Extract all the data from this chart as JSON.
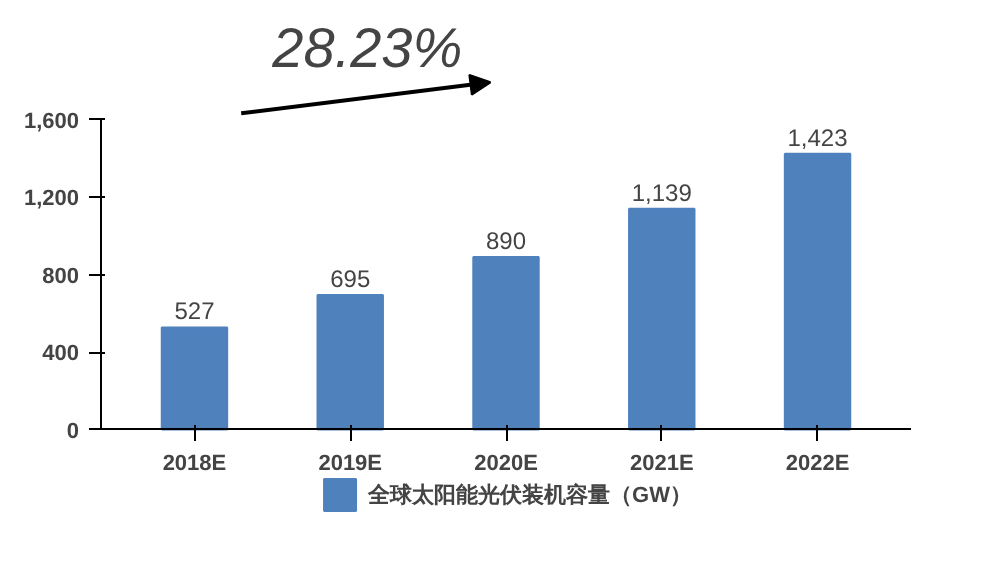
{
  "chart_data": {
    "type": "bar",
    "categories": [
      "2018E",
      "2019E",
      "2020E",
      "2021E",
      "2022E"
    ],
    "series": [
      {
        "name": "全球太阳能光伏装机容量（GW）",
        "color": "#4f81bd",
        "values": [
          527,
          695,
          890,
          1139,
          1423
        ],
        "value_labels": [
          "527",
          "695",
          "890",
          "1,139",
          "1,423"
        ]
      }
    ],
    "ylim": [
      0,
      1600
    ],
    "yticks": [
      0,
      {
        "value": 400,
        "label": "400"
      },
      {
        "value": 800,
        "label": "800"
      },
      {
        "value": 1200,
        "label": "1,200"
      },
      {
        "value": 1600,
        "label": "1,600"
      }
    ],
    "annotations": [
      "28.23%"
    ],
    "grid": false,
    "legend": "bottom"
  }
}
